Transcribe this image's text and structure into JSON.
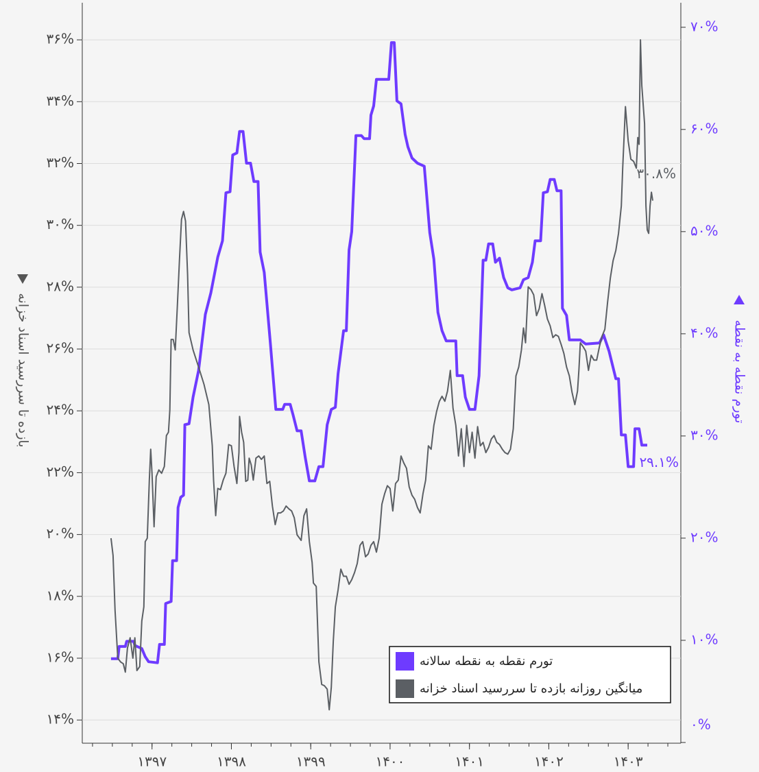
{
  "chart_data": {
    "type": "line",
    "xlim": [
      1396.121,
      1403.664
    ],
    "xticks": [
      {
        "value": 1397,
        "label": "۱۳۹۷"
      },
      {
        "value": 1398,
        "label": "۱۳۹۸"
      },
      {
        "value": 1399,
        "label": "۱۳۹۹"
      },
      {
        "value": 1400,
        "label": "۱۴۰۰"
      },
      {
        "value": 1401,
        "label": "۱۴۰۱"
      },
      {
        "value": 1402,
        "label": "۱۴۰۲"
      },
      {
        "value": 1403,
        "label": "۱۴۰۳"
      }
    ],
    "ylim": [
      13.25,
      37.2
    ],
    "yticks": [
      {
        "value": 14,
        "label": "۱۴%"
      },
      {
        "value": 16,
        "label": "۱۶%"
      },
      {
        "value": 18,
        "label": "۱۸%"
      },
      {
        "value": 20,
        "label": "۲۰%"
      },
      {
        "value": 22,
        "label": "۲۲%"
      },
      {
        "value": 24,
        "label": "۲۴%"
      },
      {
        "value": 26,
        "label": "۲۶%"
      },
      {
        "value": 28,
        "label": "۲۸%"
      },
      {
        "value": 30,
        "label": "۳۰%"
      },
      {
        "value": 32,
        "label": "۳۲%"
      },
      {
        "value": 34,
        "label": "۳۴%"
      },
      {
        "value": 36,
        "label": "۳۶%"
      }
    ],
    "y2lim": [
      -0.07,
      72.4
    ],
    "y2ticks": [
      {
        "value": 0,
        "label": "۰%"
      },
      {
        "value": 10,
        "label": "۱۰%"
      },
      {
        "value": 20,
        "label": "۲۰%"
      },
      {
        "value": 30,
        "label": "۳۰%"
      },
      {
        "value": 40,
        "label": "۴۰%"
      },
      {
        "value": 50,
        "label": "۵۰%"
      },
      {
        "value": 60,
        "label": "۶۰%"
      },
      {
        "value": 70,
        "label": "۷۰%"
      }
    ],
    "ylabel": "بازده تا سررسید اسناد خزانه",
    "y2label": "تورم نقطه به نقطه",
    "grid": true,
    "legend": "lower right",
    "series": [
      {
        "name": "تورم نقطه به نقطه سالانه",
        "color": "#6e3bff",
        "axis": "y2",
        "end_label": "۲۹.۱%",
        "x": [
          1396.483,
          1396.569,
          1396.586,
          1396.664,
          1396.681,
          1396.767,
          1396.784,
          1396.871,
          1396.914,
          1396.957,
          1397.069,
          1397.095,
          1397.155,
          1397.172,
          1397.241,
          1397.259,
          1397.31,
          1397.328,
          1397.362,
          1397.397,
          1397.414,
          1397.466,
          1397.517,
          1397.586,
          1397.672,
          1397.741,
          1397.828,
          1397.888,
          1397.931,
          1397.983,
          1398.017,
          1398.069,
          1398.103,
          1398.147,
          1398.19,
          1398.241,
          1398.284,
          1398.336,
          1398.362,
          1398.414,
          1398.491,
          1398.56,
          1398.647,
          1398.672,
          1398.741,
          1398.776,
          1398.828,
          1398.879,
          1398.931,
          1398.983,
          1399.052,
          1399.103,
          1399.155,
          1399.207,
          1399.259,
          1399.31,
          1399.345,
          1399.414,
          1399.448,
          1399.483,
          1399.517,
          1399.569,
          1399.638,
          1399.672,
          1399.741,
          1399.759,
          1399.793,
          1399.828,
          1399.983,
          1400.017,
          1400.052,
          1400.086,
          1400.138,
          1400.19,
          1400.224,
          1400.276,
          1400.345,
          1400.431,
          1400.5,
          1400.552,
          1400.603,
          1400.655,
          1400.707,
          1400.828,
          1400.845,
          1400.914,
          1400.948,
          1401.0,
          1401.069,
          1401.121,
          1401.172,
          1401.207,
          1401.241,
          1401.293,
          1401.328,
          1401.379,
          1401.431,
          1401.483,
          1401.534,
          1401.638,
          1401.681,
          1401.741,
          1401.793,
          1401.828,
          1401.897,
          1401.931,
          1401.983,
          1402.017,
          1402.069,
          1402.103,
          1402.155,
          1402.172,
          1402.224,
          1402.259,
          1402.397,
          1402.466,
          1402.638,
          1402.69,
          1402.759,
          1402.845,
          1402.879,
          1402.914,
          1402.966,
          1403.0,
          1403.069,
          1403.086,
          1403.138,
          1403.172,
          1403.241
        ],
        "values": [
          8.2,
          8.2,
          9.4,
          9.4,
          9.9,
          9.9,
          9.5,
          9.2,
          8.4,
          7.9,
          7.8,
          9.6,
          9.6,
          13.6,
          13.8,
          17.8,
          17.8,
          23.0,
          24.0,
          24.2,
          31.1,
          31.2,
          33.8,
          36.4,
          41.9,
          44.0,
          47.5,
          49.1,
          53.8,
          53.9,
          57.5,
          57.7,
          59.8,
          59.8,
          56.7,
          56.7,
          54.9,
          54.9,
          48.0,
          46.0,
          39.1,
          32.6,
          32.6,
          33.1,
          33.1,
          32.1,
          30.5,
          30.5,
          27.9,
          25.6,
          25.6,
          27.0,
          27.0,
          31.1,
          32.6,
          32.8,
          36.1,
          40.3,
          40.3,
          48.2,
          50.0,
          59.4,
          59.4,
          59.1,
          59.1,
          61.4,
          62.3,
          64.9,
          64.9,
          68.5,
          68.5,
          62.8,
          62.5,
          59.5,
          58.3,
          57.2,
          56.7,
          56.4,
          49.9,
          47.3,
          42.1,
          40.3,
          39.3,
          39.3,
          35.9,
          35.9,
          33.8,
          32.6,
          32.6,
          35.9,
          47.2,
          47.2,
          48.8,
          48.8,
          47.0,
          47.4,
          45.5,
          44.5,
          44.3,
          44.5,
          45.3,
          45.5,
          47.0,
          49.1,
          49.1,
          53.8,
          53.9,
          55.1,
          55.1,
          54.0,
          54.0,
          42.5,
          41.8,
          39.4,
          39.4,
          39.0,
          39.1,
          39.9,
          38.3,
          35.6,
          35.6,
          30.1,
          30.1,
          27.0,
          27.0,
          30.7,
          30.7,
          29.1,
          29.1
        ]
      },
      {
        "name": "میانگین روزانه بازده تا سررسید اسناد خزانه",
        "color": "#5b5f64",
        "axis": "y",
        "end_label": "۳۰.۸%",
        "x": [
          1396.483,
          1396.509,
          1396.534,
          1396.569,
          1396.603,
          1396.638,
          1396.664,
          1396.69,
          1396.724,
          1396.759,
          1396.784,
          1396.81,
          1396.845,
          1396.871,
          1396.897,
          1396.914,
          1396.94,
          1396.966,
          1396.983,
          1397.0,
          1397.026,
          1397.052,
          1397.086,
          1397.121,
          1397.155,
          1397.181,
          1397.207,
          1397.224,
          1397.241,
          1397.267,
          1397.293,
          1397.319,
          1397.345,
          1397.371,
          1397.397,
          1397.422,
          1397.448,
          1397.466,
          1397.517,
          1397.586,
          1397.655,
          1397.716,
          1397.759,
          1397.776,
          1397.802,
          1397.828,
          1397.862,
          1397.897,
          1397.931,
          1397.966,
          1398.0,
          1398.034,
          1398.069,
          1398.095,
          1398.103,
          1398.129,
          1398.155,
          1398.181,
          1398.207,
          1398.224,
          1398.25,
          1398.276,
          1398.31,
          1398.345,
          1398.379,
          1398.414,
          1398.448,
          1398.483,
          1398.517,
          1398.552,
          1398.586,
          1398.621,
          1398.655,
          1398.69,
          1398.724,
          1398.759,
          1398.793,
          1398.828,
          1398.879,
          1398.914,
          1398.948,
          1398.983,
          1399.017,
          1399.034,
          1399.069,
          1399.103,
          1399.138,
          1399.172,
          1399.207,
          1399.233,
          1399.259,
          1399.284,
          1399.31,
          1399.345,
          1399.379,
          1399.414,
          1399.448,
          1399.483,
          1399.517,
          1399.552,
          1399.586,
          1399.621,
          1399.655,
          1399.69,
          1399.724,
          1399.759,
          1399.793,
          1399.828,
          1399.862,
          1399.897,
          1399.931,
          1399.966,
          1400.0,
          1400.034,
          1400.069,
          1400.103,
          1400.138,
          1400.172,
          1400.207,
          1400.241,
          1400.276,
          1400.31,
          1400.345,
          1400.379,
          1400.414,
          1400.448,
          1400.483,
          1400.517,
          1400.552,
          1400.586,
          1400.621,
          1400.655,
          1400.69,
          1400.724,
          1400.759,
          1400.793,
          1400.828,
          1400.862,
          1400.897,
          1400.931,
          1400.966,
          1401.0,
          1401.034,
          1401.069,
          1401.103,
          1401.138,
          1401.172,
          1401.207,
          1401.241,
          1401.276,
          1401.31,
          1401.345,
          1401.379,
          1401.414,
          1401.448,
          1401.483,
          1401.517,
          1401.552,
          1401.586,
          1401.621,
          1401.655,
          1401.681,
          1401.707,
          1401.741,
          1401.776,
          1401.81,
          1401.845,
          1401.879,
          1401.914,
          1401.948,
          1401.983,
          1402.017,
          1402.052,
          1402.086,
          1402.121,
          1402.155,
          1402.19,
          1402.224,
          1402.259,
          1402.293,
          1402.328,
          1402.362,
          1402.379,
          1402.397,
          1402.431,
          1402.466,
          1402.5,
          1402.534,
          1402.569,
          1402.603,
          1402.638,
          1402.672,
          1402.707,
          1402.741,
          1402.776,
          1402.81,
          1402.845,
          1402.879,
          1402.914,
          1402.931,
          1402.966,
          1403.0,
          1403.034,
          1403.069,
          1403.103,
          1403.121,
          1403.138,
          1403.155,
          1403.172,
          1403.207,
          1403.224,
          1403.241,
          1403.259,
          1403.276,
          1403.293,
          1403.31
        ],
        "values": [
          19.88,
          19.32,
          17.55,
          16.0,
          15.88,
          15.82,
          15.55,
          16.33,
          16.66,
          16.0,
          16.66,
          15.6,
          15.73,
          17.2,
          17.66,
          19.77,
          19.88,
          21.76,
          22.76,
          21.98,
          20.25,
          21.87,
          22.09,
          21.98,
          22.2,
          23.2,
          23.31,
          24.02,
          26.31,
          26.31,
          25.97,
          27.41,
          28.86,
          30.19,
          30.45,
          30.14,
          28.41,
          26.53,
          25.97,
          25.42,
          24.86,
          24.2,
          22.87,
          21.76,
          20.61,
          21.49,
          21.45,
          21.76,
          21.98,
          22.91,
          22.87,
          22.2,
          21.65,
          22.65,
          23.82,
          23.31,
          22.98,
          21.72,
          21.76,
          22.47,
          22.25,
          21.76,
          22.47,
          22.54,
          22.43,
          22.54,
          21.65,
          21.72,
          20.92,
          20.32,
          20.7,
          20.7,
          20.76,
          20.92,
          20.83,
          20.76,
          20.54,
          19.99,
          19.81,
          20.61,
          20.83,
          19.77,
          19.1,
          18.43,
          18.32,
          15.88,
          15.15,
          15.11,
          15.0,
          14.33,
          15.06,
          16.55,
          17.66,
          18.21,
          18.88,
          18.65,
          18.65,
          18.39,
          18.54,
          18.77,
          19.06,
          19.65,
          19.77,
          19.28,
          19.37,
          19.65,
          19.77,
          19.43,
          19.88,
          20.98,
          21.32,
          21.58,
          21.49,
          20.76,
          21.65,
          21.76,
          22.54,
          22.32,
          22.14,
          21.54,
          21.27,
          21.14,
          20.87,
          20.7,
          21.32,
          21.76,
          22.87,
          22.76,
          23.53,
          23.98,
          24.31,
          24.47,
          24.31,
          24.64,
          25.31,
          24.09,
          23.53,
          22.54,
          23.42,
          22.2,
          23.53,
          22.65,
          23.31,
          22.47,
          23.49,
          22.87,
          22.98,
          22.65,
          22.82,
          23.09,
          23.2,
          22.98,
          22.91,
          22.76,
          22.65,
          22.6,
          22.76,
          23.42,
          25.13,
          25.42,
          25.97,
          26.68,
          26.2,
          28.01,
          27.92,
          27.75,
          27.08,
          27.3,
          27.79,
          27.41,
          26.97,
          26.75,
          26.37,
          26.46,
          26.41,
          26.15,
          25.86,
          25.42,
          25.13,
          24.6,
          24.2,
          24.64,
          25.31,
          26.2,
          26.08,
          25.93,
          25.31,
          25.8,
          25.64,
          25.64,
          26.08,
          26.42,
          26.64,
          27.52,
          28.3,
          28.86,
          29.19,
          29.74,
          30.63,
          31.85,
          33.84,
          32.73,
          32.14,
          32.07,
          31.85,
          32.84,
          32.62,
          36.0,
          34.51,
          33.29,
          30.63,
          29.85,
          29.74,
          30.63,
          31.07,
          30.8
        ]
      }
    ]
  }
}
